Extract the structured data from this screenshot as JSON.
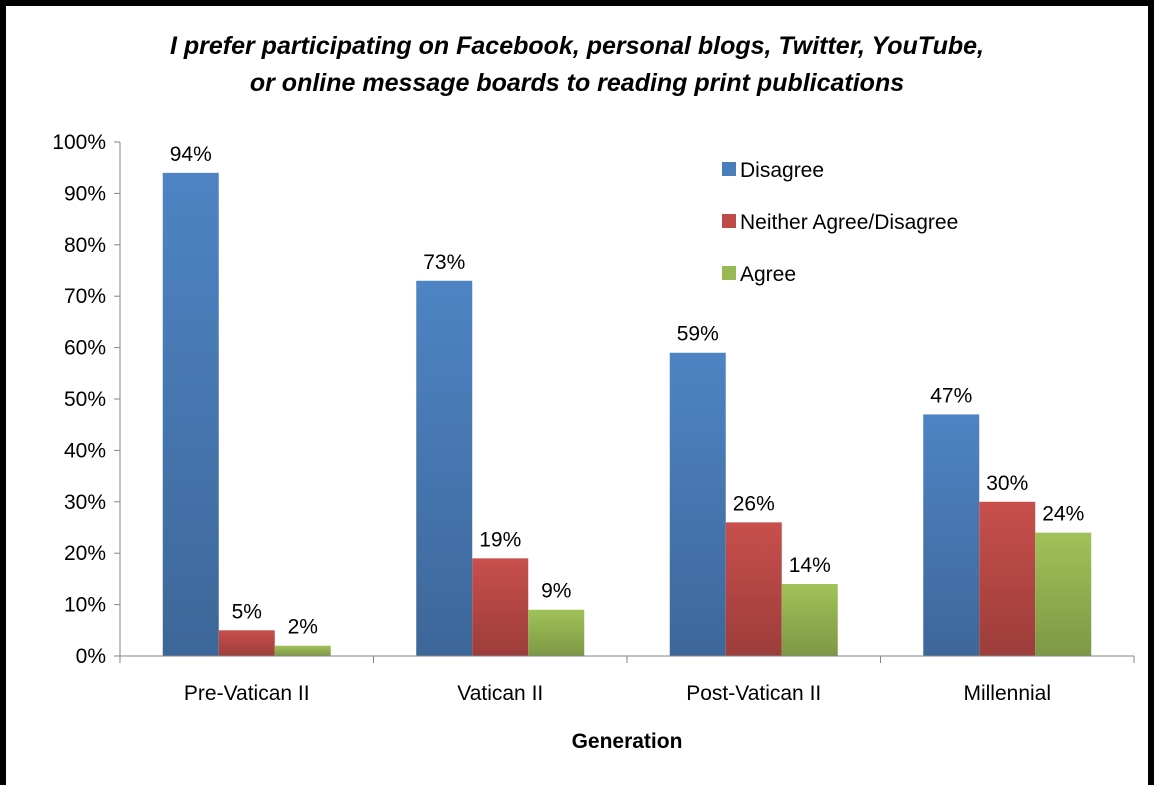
{
  "chart_data": {
    "type": "bar",
    "title_lines": [
      "I prefer participating on Facebook, personal blogs, Twitter, YouTube,",
      "or online message boards to reading print publications"
    ],
    "xlabel": "Generation",
    "ylabel": "",
    "ylim": [
      0,
      100
    ],
    "y_ticks": [
      "0%",
      "10%",
      "20%",
      "30%",
      "40%",
      "50%",
      "60%",
      "70%",
      "80%",
      "90%",
      "100%"
    ],
    "categories": [
      "Pre-Vatican II",
      "Vatican II",
      "Post-Vatican II",
      "Millennial"
    ],
    "series": [
      {
        "name": "Disagree",
        "color": "#4a7ebb",
        "values": [
          94,
          73,
          59,
          47
        ],
        "labels": [
          "94%",
          "73%",
          "59%",
          "47%"
        ]
      },
      {
        "name": "Neither Agree/Disagree",
        "color": "#be4b48",
        "values": [
          5,
          19,
          26,
          30
        ],
        "labels": [
          "5%",
          "19%",
          "26%",
          "30%"
        ]
      },
      {
        "name": "Agree",
        "color": "#98b954",
        "values": [
          2,
          9,
          14,
          24
        ],
        "labels": [
          "2%",
          "9%",
          "14%",
          "24%"
        ]
      }
    ],
    "grid": false,
    "legend_position": "top-right"
  }
}
